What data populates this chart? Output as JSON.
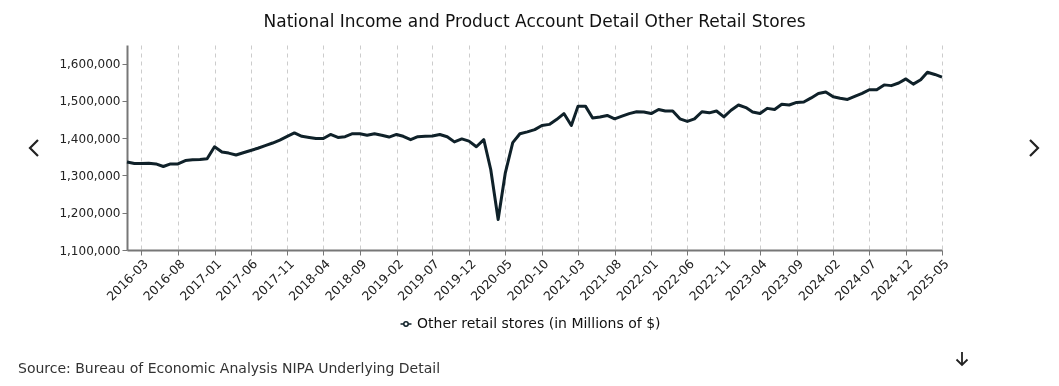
{
  "chart_data": {
    "type": "line",
    "title": "National Income and Product Account Detail Other Retail Stores",
    "x": [
      "2016-01",
      "2016-02",
      "2016-03",
      "2016-04",
      "2016-05",
      "2016-06",
      "2016-07",
      "2016-08",
      "2016-09",
      "2016-10",
      "2016-11",
      "2016-12",
      "2017-01",
      "2017-02",
      "2017-03",
      "2017-04",
      "2017-05",
      "2017-06",
      "2017-07",
      "2017-08",
      "2017-09",
      "2017-10",
      "2017-11",
      "2017-12",
      "2018-01",
      "2018-02",
      "2018-03",
      "2018-04",
      "2018-05",
      "2018-06",
      "2018-07",
      "2018-08",
      "2018-09",
      "2018-10",
      "2018-11",
      "2018-12",
      "2019-01",
      "2019-02",
      "2019-03",
      "2019-04",
      "2019-05",
      "2019-06",
      "2019-07",
      "2019-08",
      "2019-09",
      "2019-10",
      "2019-11",
      "2019-12",
      "2020-01",
      "2020-02",
      "2020-03",
      "2020-04",
      "2020-05",
      "2020-06",
      "2020-07",
      "2020-08",
      "2020-09",
      "2020-10",
      "2020-11",
      "2020-12",
      "2021-01",
      "2021-02",
      "2021-03",
      "2021-04",
      "2021-05",
      "2021-06",
      "2021-07",
      "2021-08",
      "2021-09",
      "2021-10",
      "2021-11",
      "2021-12",
      "2022-01",
      "2022-02",
      "2022-03",
      "2022-04",
      "2022-05",
      "2022-06",
      "2022-07",
      "2022-08",
      "2022-09",
      "2022-10",
      "2022-11",
      "2022-12",
      "2023-01",
      "2023-02",
      "2023-03",
      "2023-04",
      "2023-05",
      "2023-06",
      "2023-07",
      "2023-08",
      "2023-09",
      "2023-10",
      "2023-11",
      "2023-12",
      "2024-01",
      "2024-02",
      "2024-03",
      "2024-04",
      "2024-05",
      "2024-06",
      "2024-07",
      "2024-08",
      "2024-09",
      "2024-10",
      "2024-11",
      "2024-12",
      "2025-01",
      "2025-02",
      "2025-03",
      "2025-04",
      "2025-05"
    ],
    "series": [
      {
        "name": "Other retail stores (in Millions of $)",
        "color": "#0f2129",
        "values": [
          1336000,
          1332000,
          1332000,
          1333000,
          1331000,
          1324000,
          1331000,
          1331000,
          1340000,
          1342000,
          1343000,
          1345000,
          1377000,
          1363000,
          1360000,
          1355000,
          1361000,
          1367000,
          1373000,
          1380000,
          1387000,
          1395000,
          1405000,
          1414000,
          1405000,
          1402000,
          1399000,
          1399000,
          1410000,
          1402000,
          1404000,
          1412000,
          1412000,
          1408000,
          1412000,
          1408000,
          1403000,
          1410000,
          1405000,
          1396000,
          1404000,
          1405000,
          1406000,
          1410000,
          1404000,
          1390000,
          1398000,
          1392000,
          1377000,
          1396000,
          1316000,
          1182000,
          1307000,
          1388000,
          1412000,
          1417000,
          1423000,
          1434000,
          1437000,
          1450000,
          1466000,
          1434000,
          1486000,
          1486000,
          1454000,
          1457000,
          1461000,
          1452000,
          1459000,
          1466000,
          1471000,
          1470000,
          1466000,
          1477000,
          1473000,
          1473000,
          1452000,
          1445000,
          1452000,
          1471000,
          1468000,
          1473000,
          1457000,
          1475000,
          1489000,
          1482000,
          1470000,
          1466000,
          1480000,
          1477000,
          1491000,
          1489000,
          1496000,
          1497000,
          1508000,
          1520000,
          1524000,
          1511000,
          1507000,
          1504000,
          1512000,
          1520000,
          1530000,
          1530000,
          1543000,
          1541000,
          1548000,
          1559000,
          1545000,
          1557000,
          1577000,
          1571000,
          1564000
        ]
      }
    ],
    "xlim": [
      "2016-01",
      "2025-05"
    ],
    "xticks": [
      "2016-03",
      "2016-08",
      "2017-01",
      "2017-06",
      "2017-11",
      "2018-04",
      "2018-09",
      "2019-02",
      "2019-07",
      "2019-12",
      "2020-05",
      "2020-10",
      "2021-03",
      "2021-08",
      "2022-01",
      "2022-06",
      "2022-11",
      "2023-04",
      "2023-09",
      "2024-02",
      "2024-07",
      "2024-12",
      "2025-05"
    ],
    "ylim": [
      1100000,
      1650000
    ],
    "yticks": [
      {
        "value": 1100000,
        "label": "1,100,000"
      },
      {
        "value": 1200000,
        "label": "1,200,000"
      },
      {
        "value": 1300000,
        "label": "1,300,000"
      },
      {
        "value": 1400000,
        "label": "1,400,000"
      },
      {
        "value": 1500000,
        "label": "1,500,000"
      },
      {
        "value": 1600000,
        "label": "1,600,000"
      }
    ],
    "grid": "x",
    "legend": "bottom",
    "annotations": [
      "Source: Bureau of Economic Analysis NIPA Underlying Detail"
    ]
  }
}
